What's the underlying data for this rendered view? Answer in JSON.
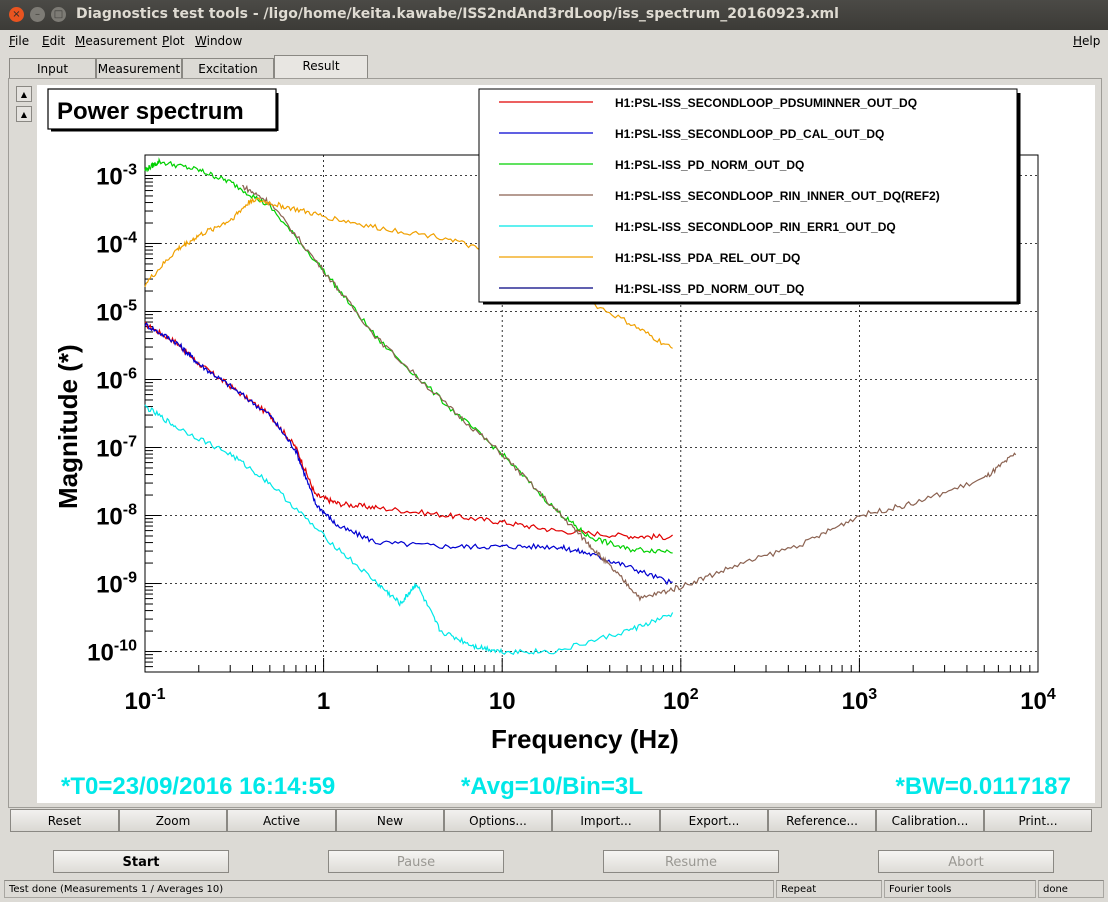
{
  "window": {
    "title": "Diagnostics test tools - /ligo/home/keita.kawabe/ISS2ndAnd3rdLoop/iss_spectrum_20160923.xml",
    "close_glyph": "×",
    "minimize_glyph": "–",
    "maximize_glyph": "□"
  },
  "menu": {
    "file": "File",
    "edit": "Edit",
    "measurement": "Measurement",
    "plot": "Plot",
    "window": "Window",
    "help": "Help"
  },
  "tabs": [
    "Input",
    "Measurement",
    "Excitation",
    "Result"
  ],
  "graph": {
    "scroll_up": "▲",
    "scroll_down": "▲",
    "footer_t0": "*T0=23/09/2016 16:14:59",
    "footer_avg": "*Avg=10/Bin=3L",
    "footer_bw": "*BW=0.0117187"
  },
  "buttons": {
    "reset": "Reset",
    "zoom": "Zoom",
    "active": "Active",
    "new": "New",
    "options": "Options...",
    "import": "Import...",
    "export": "Export...",
    "reference": "Reference...",
    "calibration": "Calibration...",
    "print": "Print..."
  },
  "controls": {
    "start": "Start",
    "pause": "Pause",
    "resume": "Resume",
    "abort": "Abort"
  },
  "status": {
    "message": "Test done (Measurements 1 / Averages 10)",
    "repeat": "Repeat",
    "tool": "Fourier tools",
    "state": "done"
  },
  "chart_data": {
    "type": "line",
    "title": "Power spectrum",
    "xlabel": "Frequency (Hz)",
    "ylabel": "Magnitude (*)",
    "xscale": "log",
    "yscale": "log",
    "xlim": [
      0.1,
      10000
    ],
    "ylim": [
      5e-11,
      0.002
    ],
    "grid": true,
    "legend_position": "top-right",
    "x_ticks": [
      {
        "base": "10",
        "exp": "-1"
      },
      {
        "base": "1",
        "exp": ""
      },
      {
        "base": "10",
        "exp": ""
      },
      {
        "base": "10",
        "exp": "2"
      },
      {
        "base": "10",
        "exp": "3"
      },
      {
        "base": "10",
        "exp": "4"
      }
    ],
    "y_ticks": [
      {
        "base": "10",
        "exp": "-3"
      },
      {
        "base": "10",
        "exp": "-4"
      },
      {
        "base": "10",
        "exp": "-5"
      },
      {
        "base": "10",
        "exp": "-6"
      },
      {
        "base": "10",
        "exp": "-7"
      },
      {
        "base": "10",
        "exp": "-8"
      },
      {
        "base": "10",
        "exp": "-9"
      },
      {
        "base": "10",
        "exp": "-10"
      }
    ],
    "series": [
      {
        "name": "H1:PSL-ISS_SECONDLOOP_PDSUMINNER_OUT_DQ",
        "color": "#e00000",
        "x": [
          0.1,
          0.15,
          0.2,
          0.3,
          0.5,
          0.7,
          0.9,
          1.2,
          2,
          5,
          10,
          20,
          50,
          90
        ],
        "y": [
          6.5e-06,
          3.5e-06,
          1.7e-06,
          8e-07,
          3e-07,
          1e-07,
          2e-08,
          1.5e-08,
          1.3e-08,
          1e-08,
          8e-09,
          6e-09,
          5e-09,
          4.8e-09
        ]
      },
      {
        "name": "H1:PSL-ISS_SECONDLOOP_PD_CAL_OUT_DQ",
        "color": "#0000d0",
        "x": [
          0.1,
          0.15,
          0.2,
          0.3,
          0.5,
          0.7,
          0.9,
          1.2,
          2,
          5,
          10,
          20,
          30,
          50,
          90
        ],
        "y": [
          6.5e-06,
          3.5e-06,
          1.7e-06,
          8e-07,
          3e-07,
          9e-08,
          1.5e-08,
          7e-09,
          4e-09,
          3.5e-09,
          3.5e-09,
          3.5e-09,
          2.8e-09,
          1.8e-09,
          1e-09
        ]
      },
      {
        "name": "H1:PSL-ISS_PD_NORM_OUT_DQ",
        "color": "#00d000",
        "x": [
          0.1,
          0.12,
          0.2,
          0.3,
          0.5,
          1,
          2,
          5,
          10,
          20,
          30,
          50,
          90
        ],
        "y": [
          0.0012,
          0.0016,
          0.0012,
          0.0008,
          0.00035,
          4e-05,
          4e-06,
          4e-07,
          8e-08,
          1.2e-08,
          5e-09,
          3.2e-09,
          3e-09
        ]
      },
      {
        "name": "H1:PSL-ISS_SECONDLOOP_RIN_INNER_OUT_DQ(REF2)",
        "color": "#8b6251",
        "x": [
          0.35,
          0.5,
          1,
          2,
          5,
          10,
          20,
          30,
          40,
          60,
          100,
          200,
          500,
          1000,
          2000,
          5000,
          7500
        ],
        "y": [
          0.0007,
          0.0004,
          4e-05,
          4e-06,
          4e-07,
          8e-08,
          1.2e-08,
          4e-09,
          1.8e-09,
          6e-10,
          9e-10,
          1.8e-09,
          4e-09,
          1e-08,
          1.5e-08,
          3.5e-08,
          8e-08
        ]
      },
      {
        "name": "H1:PSL-ISS_SECONDLOOP_RIN_ERR1_OUT_DQ",
        "color": "#00e8e8",
        "x": [
          0.1,
          0.15,
          0.3,
          0.5,
          1,
          2,
          2.7,
          3.3,
          4.5,
          7,
          10,
          20,
          50,
          90
        ],
        "y": [
          4e-07,
          2e-07,
          8e-08,
          3e-08,
          5e-09,
          1e-09,
          5e-10,
          1e-09,
          2e-10,
          1.2e-10,
          1e-10,
          1e-10,
          2e-10,
          3.5e-10
        ]
      },
      {
        "name": "H1:PSL-ISS_PDA_REL_OUT_DQ",
        "color": "#f0a000",
        "x": [
          0.1,
          0.15,
          0.2,
          0.3,
          0.4,
          0.6,
          1,
          2,
          5,
          10,
          20,
          50,
          90
        ],
        "y": [
          2.5e-05,
          8e-05,
          0.00013,
          0.00022,
          0.00045,
          0.00035,
          0.00025,
          0.00017,
          0.00012,
          6e-05,
          2.5e-05,
          7e-06,
          2.8e-06
        ]
      },
      {
        "name": "H1:PSL-ISS_PD_NORM_OUT_DQ",
        "color": "#000080",
        "x": [],
        "y": []
      }
    ]
  }
}
